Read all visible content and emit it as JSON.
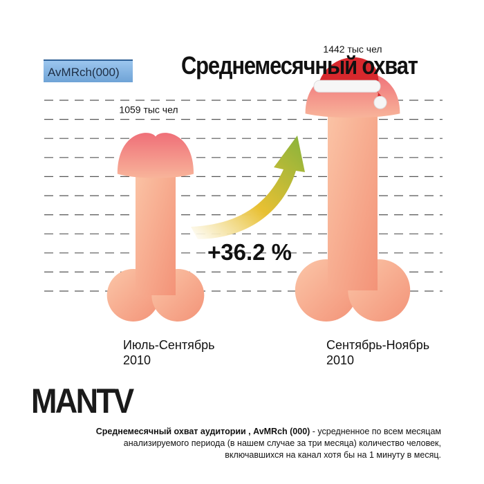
{
  "metric_badge": "AvMRch(000)",
  "logo": "MANTV",
  "footnote": {
    "term": "Среднемесячный охват аудитории , AvMRch (000)",
    "line1_rest": " - усредненное по всем месяцам",
    "line2": "анализируемого периода (в нашем случае за три месяца) количество человек,",
    "line3": "включавшихся на канал хотя бы на 1 минуту в месяц."
  },
  "colors": {
    "figure": "#f6a488",
    "figure_head": "#f27f80",
    "hat": "#d7282d",
    "arrow_start": "#ffffff",
    "arrow_end": "#8ab43c",
    "gridline": "#555555",
    "badge": "#8bb8e6"
  },
  "chart_data": {
    "type": "bar",
    "title": "Среднемесячный охват",
    "categories": [
      [
        "Июль-Сентябрь",
        "2010"
      ],
      [
        "Сентябрь-Ноябрь",
        "2010"
      ]
    ],
    "values": [
      1059,
      1442
    ],
    "value_labels": [
      "1059 тыс чел",
      "1442 тыс чел"
    ],
    "unit": "тыс чел",
    "change_label": "+36.2 %",
    "grid": true,
    "legend": "none"
  }
}
